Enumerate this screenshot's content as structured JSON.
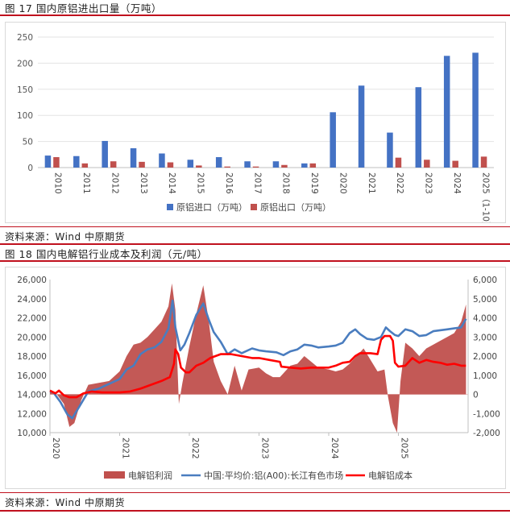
{
  "figure1": {
    "title": "图 17  国内原铝进出口量（万吨）",
    "source": "资料来源：Wind 中原期货"
  },
  "figure2": {
    "title": "图 18  国内电解铝行业成本及利润（元/吨）",
    "source": "资料来源：Wind 中原期货"
  },
  "colors": {
    "rule": "#c0111e",
    "blue": "#4472c4",
    "red": "#c0504d",
    "profit": "#c0504d",
    "price": "#4a7dbf",
    "cost": "#ff0000"
  },
  "chart_data": [
    {
      "type": "bar",
      "categories": [
        "2010",
        "2011",
        "2012",
        "2013",
        "2014",
        "2015",
        "2016",
        "2017",
        "2018",
        "2019",
        "2020",
        "2021",
        "2022",
        "2023",
        "2024",
        "2025（1-10）"
      ],
      "series": [
        {
          "name": "原铝进口（万吨）",
          "values": [
            23,
            22,
            51,
            37,
            27,
            15,
            20,
            12,
            12,
            8,
            106,
            157,
            67,
            154,
            214,
            220
          ]
        },
        {
          "name": "原铝出口（万吨）",
          "values": [
            20,
            8,
            12,
            11,
            10,
            4,
            2,
            2,
            5,
            8,
            0,
            0,
            19,
            15,
            13,
            21
          ]
        }
      ],
      "ylim": [
        0,
        250
      ],
      "yticks": [
        0,
        50,
        100,
        150,
        200,
        250
      ],
      "legend": "bottom",
      "grid": true
    },
    {
      "type": "area",
      "x_range": [
        "2020-01-01",
        "2025-12-31"
      ],
      "x_ticks": [
        "2020",
        "2021",
        "2022",
        "2023",
        "2024",
        "2025"
      ],
      "y_left": {
        "ticks": [
          "10,000",
          "12,000",
          "14,000",
          "16,000",
          "18,000",
          "20,000",
          "22,000",
          "24,000",
          "26,000"
        ],
        "range": [
          10000,
          26000
        ]
      },
      "y_right": {
        "ticks": [
          "-2,000",
          "-1,000",
          "0",
          "1,000",
          "2,000",
          "3,000",
          "4,000",
          "5,000",
          "6,000"
        ],
        "range": [
          -2000,
          6000
        ]
      },
      "series": [
        {
          "name": "电解铝利润",
          "axis": "right",
          "type": "area",
          "points": [
            [
              2020.0,
              200
            ],
            [
              2020.1,
              0
            ],
            [
              2020.2,
              -500
            ],
            [
              2020.28,
              -1700
            ],
            [
              2020.35,
              -1500
            ],
            [
              2020.45,
              -300
            ],
            [
              2020.55,
              500
            ],
            [
              2020.7,
              600
            ],
            [
              2020.85,
              700
            ],
            [
              2021.0,
              1200
            ],
            [
              2021.1,
              2000
            ],
            [
              2021.2,
              2600
            ],
            [
              2021.3,
              2700
            ],
            [
              2021.4,
              3000
            ],
            [
              2021.5,
              3400
            ],
            [
              2021.6,
              3800
            ],
            [
              2021.7,
              4600
            ],
            [
              2021.75,
              5800
            ],
            [
              2021.8,
              4400
            ],
            [
              2021.85,
              -500
            ],
            [
              2021.9,
              600
            ],
            [
              2022.0,
              2500
            ],
            [
              2022.1,
              4200
            ],
            [
              2022.2,
              5700
            ],
            [
              2022.28,
              3800
            ],
            [
              2022.35,
              1700
            ],
            [
              2022.45,
              700
            ],
            [
              2022.55,
              0
            ],
            [
              2022.65,
              1500
            ],
            [
              2022.75,
              200
            ],
            [
              2022.85,
              1300
            ],
            [
              2023.0,
              1400
            ],
            [
              2023.1,
              1100
            ],
            [
              2023.2,
              900
            ],
            [
              2023.3,
              900
            ],
            [
              2023.45,
              1500
            ],
            [
              2023.55,
              1600
            ],
            [
              2023.65,
              2000
            ],
            [
              2023.75,
              1700
            ],
            [
              2023.85,
              1400
            ],
            [
              2024.0,
              1300
            ],
            [
              2024.1,
              1200
            ],
            [
              2024.2,
              1300
            ],
            [
              2024.3,
              1600
            ],
            [
              2024.4,
              2000
            ],
            [
              2024.5,
              2400
            ],
            [
              2024.6,
              1800
            ],
            [
              2024.7,
              1200
            ],
            [
              2024.8,
              1300
            ],
            [
              2024.85,
              -100
            ],
            [
              2024.92,
              -1500
            ],
            [
              2024.98,
              -2000
            ],
            [
              2025.03,
              700
            ],
            [
              2025.1,
              2700
            ],
            [
              2025.2,
              2400
            ],
            [
              2025.3,
              2000
            ],
            [
              2025.4,
              2400
            ],
            [
              2025.5,
              2600
            ],
            [
              2025.6,
              2800
            ],
            [
              2025.7,
              3000
            ],
            [
              2025.8,
              3200
            ],
            [
              2025.9,
              3800
            ],
            [
              2025.97,
              4700
            ]
          ]
        },
        {
          "name": "中国:平均价:铝(A00):长江有色市场",
          "axis": "left",
          "type": "line",
          "points": [
            [
              2020.0,
              14300
            ],
            [
              2020.05,
              14200
            ],
            [
              2020.15,
              13200
            ],
            [
              2020.25,
              11900
            ],
            [
              2020.32,
              11500
            ],
            [
              2020.42,
              12700
            ],
            [
              2020.55,
              14300
            ],
            [
              2020.7,
              14600
            ],
            [
              2020.85,
              15100
            ],
            [
              2021.0,
              15600
            ],
            [
              2021.1,
              16600
            ],
            [
              2021.2,
              17000
            ],
            [
              2021.3,
              18200
            ],
            [
              2021.4,
              18700
            ],
            [
              2021.5,
              18900
            ],
            [
              2021.6,
              19500
            ],
            [
              2021.7,
              20900
            ],
            [
              2021.76,
              23800
            ],
            [
              2021.8,
              21000
            ],
            [
              2021.87,
              18600
            ],
            [
              2021.93,
              19200
            ],
            [
              2022.0,
              20400
            ],
            [
              2022.1,
              22300
            ],
            [
              2022.2,
              23500
            ],
            [
              2022.28,
              21800
            ],
            [
              2022.35,
              20500
            ],
            [
              2022.45,
              19500
            ],
            [
              2022.55,
              18200
            ],
            [
              2022.65,
              18700
            ],
            [
              2022.75,
              18300
            ],
            [
              2022.9,
              18800
            ],
            [
              2023.0,
              18600
            ],
            [
              2023.1,
              18500
            ],
            [
              2023.25,
              18400
            ],
            [
              2023.35,
              18100
            ],
            [
              2023.45,
              18500
            ],
            [
              2023.55,
              18700
            ],
            [
              2023.65,
              19200
            ],
            [
              2023.75,
              19100
            ],
            [
              2023.85,
              18900
            ],
            [
              2024.0,
              19000
            ],
            [
              2024.1,
              19100
            ],
            [
              2024.2,
              19400
            ],
            [
              2024.3,
              20400
            ],
            [
              2024.38,
              20800
            ],
            [
              2024.45,
              20300
            ],
            [
              2024.55,
              19800
            ],
            [
              2024.65,
              19700
            ],
            [
              2024.75,
              20000
            ],
            [
              2024.82,
              21000
            ],
            [
              2024.88,
              20600
            ],
            [
              2024.95,
              20200
            ],
            [
              2025.0,
              20100
            ],
            [
              2025.1,
              20800
            ],
            [
              2025.2,
              20600
            ],
            [
              2025.3,
              20100
            ],
            [
              2025.4,
              20200
            ],
            [
              2025.5,
              20600
            ],
            [
              2025.6,
              20700
            ],
            [
              2025.7,
              20800
            ],
            [
              2025.8,
              20900
            ],
            [
              2025.9,
              21000
            ],
            [
              2025.97,
              21900
            ]
          ]
        },
        {
          "name": "电解铝成本",
          "axis": "left",
          "type": "line",
          "points": [
            [
              2020.0,
              14400
            ],
            [
              2020.08,
              14100
            ],
            [
              2020.13,
              14400
            ],
            [
              2020.2,
              13900
            ],
            [
              2020.28,
              13700
            ],
            [
              2020.38,
              13700
            ],
            [
              2020.48,
              14100
            ],
            [
              2020.6,
              14300
            ],
            [
              2020.75,
              14200
            ],
            [
              2020.9,
              14200
            ],
            [
              2021.0,
              14200
            ],
            [
              2021.15,
              14300
            ],
            [
              2021.3,
              14600
            ],
            [
              2021.45,
              15000
            ],
            [
              2021.6,
              15400
            ],
            [
              2021.72,
              15800
            ],
            [
              2021.78,
              17200
            ],
            [
              2021.8,
              18700
            ],
            [
              2021.84,
              18200
            ],
            [
              2021.88,
              16800
            ],
            [
              2021.95,
              16300
            ],
            [
              2022.0,
              16300
            ],
            [
              2022.1,
              17000
            ],
            [
              2022.2,
              17300
            ],
            [
              2022.3,
              17800
            ],
            [
              2022.45,
              18200
            ],
            [
              2022.6,
              18200
            ],
            [
              2022.75,
              18000
            ],
            [
              2022.9,
              17800
            ],
            [
              2023.0,
              17800
            ],
            [
              2023.15,
              17600
            ],
            [
              2023.3,
              17400
            ],
            [
              2023.32,
              16900
            ],
            [
              2023.45,
              16800
            ],
            [
              2023.6,
              16700
            ],
            [
              2023.75,
              16800
            ],
            [
              2023.85,
              16800
            ],
            [
              2024.0,
              16800
            ],
            [
              2024.1,
              17000
            ],
            [
              2024.2,
              17300
            ],
            [
              2024.3,
              17400
            ],
            [
              2024.38,
              18000
            ],
            [
              2024.45,
              18300
            ],
            [
              2024.6,
              18300
            ],
            [
              2024.7,
              18200
            ],
            [
              2024.75,
              19700
            ],
            [
              2024.8,
              20100
            ],
            [
              2024.88,
              20100
            ],
            [
              2024.92,
              19600
            ],
            [
              2024.95,
              17300
            ],
            [
              2025.0,
              16900
            ],
            [
              2025.1,
              17000
            ],
            [
              2025.2,
              17800
            ],
            [
              2025.3,
              17300
            ],
            [
              2025.4,
              17600
            ],
            [
              2025.5,
              17400
            ],
            [
              2025.6,
              17300
            ],
            [
              2025.7,
              17100
            ],
            [
              2025.8,
              17200
            ],
            [
              2025.9,
              17000
            ],
            [
              2025.97,
              17000
            ]
          ]
        }
      ],
      "legend": "bottom"
    }
  ]
}
